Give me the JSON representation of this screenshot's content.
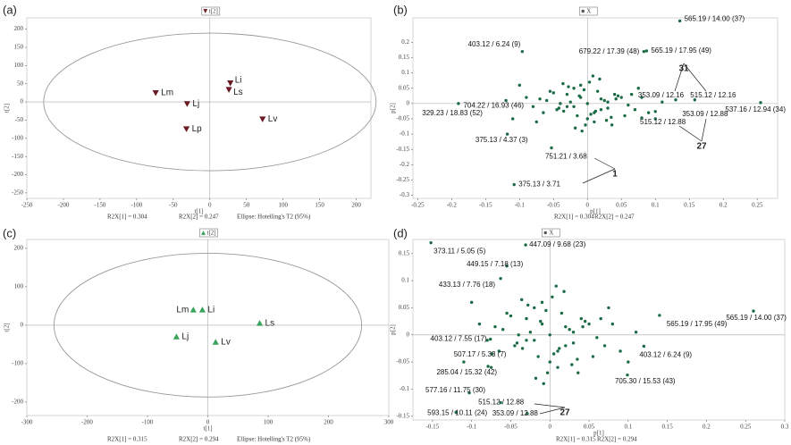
{
  "chart_data": [
    {
      "type": "scatter",
      "panel": "(a)",
      "legend": "t[2]",
      "xlabel": "t[1]",
      "ylabel": "t[2]",
      "marker": "triangle-down",
      "color": "#6b1a24",
      "labels": [
        "Li",
        "Ls",
        "Lm",
        "Lj",
        "Lp",
        "Lv"
      ],
      "x": [
        28,
        26,
        -74,
        -31,
        -32,
        72
      ],
      "y": [
        52,
        34,
        25,
        -5,
        -74,
        -47
      ],
      "xlim": [
        -250,
        220
      ],
      "ylim": [
        -265,
        231
      ],
      "xticks": [
        -250,
        -200,
        -150,
        -100,
        -50,
        0,
        50,
        100,
        150,
        200
      ],
      "yticks": [
        -250,
        -200,
        -150,
        -100,
        -50,
        0,
        50,
        100,
        150,
        200
      ],
      "ellipse": [
        227,
        189
      ],
      "footer": [
        "R2X[1] = 0.304",
        "R2X[2] = 0.247",
        "Ellipse: Hotelling's T2 (95%)"
      ]
    },
    {
      "type": "scatter",
      "panel": "(b)",
      "legend": "X",
      "xlabel": "p[1]",
      "ylabel": "p[2]",
      "marker": "circle",
      "color": "#1b6b45",
      "x": [
        -0.06,
        -0.045,
        -0.03,
        -0.02,
        -0.01,
        0,
        0.01,
        0.02,
        0.03,
        0.045,
        0.06,
        -0.05,
        -0.035,
        -0.025,
        -0.015,
        -0.005,
        0.005,
        0.015,
        0.025,
        0.035,
        0.05,
        -0.04,
        -0.02,
        0,
        0.02,
        0.04,
        -0.03,
        -0.01,
        0.01,
        0.03,
        -0.07,
        0.07,
        -0.08,
        0.08,
        -0.055,
        0.055,
        -0.012,
        0.012,
        -0.028,
        0.028,
        -0.042,
        0.042,
        0.003,
        -0.003,
        -0.065,
        0.065,
        -0.09,
        0.09,
        -0.1,
        0.1,
        -0.075,
        0.075,
        0.018,
        -0.018,
        0.036,
        -0.036,
        0.008,
        -0.008,
        0.11,
        -0.11
      ],
      "y": [
        0.01,
        -0.02,
        0.03,
        -0.01,
        0.02,
        0,
        -0.03,
        0.015,
        -0.015,
        0.025,
        -0.005,
        0.035,
        -0.025,
        0.005,
        -0.04,
        0.045,
        -0.035,
        0.04,
        0.01,
        -0.045,
        0.02,
        0,
        0.05,
        -0.05,
        -0.02,
        0.03,
        -0.01,
        0.06,
        -0.06,
        0.005,
        0.015,
        -0.02,
        -0.01,
        0.02,
        0.04,
        -0.04,
        0.025,
        -0.025,
        0.055,
        -0.055,
        -0.015,
        0.015,
        0.07,
        -0.07,
        -0.03,
        0.03,
        0.02,
        -0.03,
        0.06,
        -0.05,
        -0.06,
        0.05,
        0.08,
        -0.08,
        -0.07,
        0.065,
        0.09,
        -0.09,
        0.005,
        -0.05
      ],
      "labeled": {
        "x": [
          0.136,
          -0.096,
          0.083,
          0.087,
          -0.12,
          -0.19,
          -0.118,
          -0.053,
          -0.108,
          0.13,
          0.158,
          0.255,
          0.08,
          0.1
        ],
        "y": [
          0.27,
          0.17,
          0.17,
          0.172,
          0.01,
          0,
          -0.1,
          -0.145,
          -0.265,
          0.012,
          0.012,
          0.003,
          -0.047,
          -0.026
        ],
        "labels": [
          "565.19 / 14.00 (37)",
          "403.12 / 6.24 (9)",
          "679.22 / 17.39 (48)",
          "565.19 / 17.95 (49)",
          "704.22 / 16.93 (46)",
          "329.23 / 18.83 (52)",
          "375.13 / 4.37 (3)",
          "751.21 / 3.68",
          "375.13 / 3.71",
          "353.09 / 12.16",
          "515.12 / 12.16",
          "537.16 / 12.94 (34)",
          "515.12 / 12.88",
          "353.09 / 12.88"
        ]
      },
      "callouts": [
        "31",
        "27",
        "1"
      ],
      "xlim": [
        -0.257,
        0.28
      ],
      "ylim": [
        -0.31,
        0.28
      ],
      "xticks": [
        -0.25,
        -0.2,
        -0.15,
        -0.1,
        -0.05,
        0,
        0.05,
        0.1,
        0.15,
        0.2,
        0.25
      ],
      "yticks": [
        -0.3,
        -0.25,
        -0.2,
        -0.15,
        -0.1,
        -0.05,
        0,
        0.05,
        0.1,
        0.15,
        0.2
      ],
      "footer": [
        "R2X[1] = 0.304",
        "R2X[2] = 0.247"
      ]
    },
    {
      "type": "scatter",
      "panel": "(c)",
      "legend": "t[2]",
      "xlabel": "t[1]",
      "ylabel": "t[2]",
      "marker": "triangle-up",
      "color": "#3aa35a",
      "labels": [
        "Lm",
        "Li",
        "Ls",
        "Lj",
        "Lv"
      ],
      "x": [
        -24,
        -9,
        86,
        -52,
        13
      ],
      "y": [
        40,
        40,
        5,
        -30,
        -44
      ],
      "xlim": [
        -300,
        300
      ],
      "ylim": [
        -235,
        223
      ],
      "xticks": [
        -300,
        -200,
        -100,
        0,
        100,
        200,
        300
      ],
      "yticks": [
        -200,
        -100,
        0,
        100,
        200
      ],
      "ellipse": [
        255,
        187
      ],
      "footer": [
        "R2X[1] = 0.315",
        "R2X[2] = 0.294",
        "Ellipse: Hotelling's T2 (95%)"
      ]
    },
    {
      "type": "scatter",
      "panel": "(d)",
      "legend": "X",
      "xlabel": "p[1]",
      "ylabel": "p[2]",
      "marker": "circle",
      "color": "#1b6b45",
      "x": [
        -0.06,
        -0.045,
        -0.03,
        -0.02,
        -0.01,
        0,
        0.01,
        0.02,
        0.03,
        0.045,
        0.06,
        -0.05,
        -0.035,
        -0.025,
        -0.015,
        -0.005,
        0.005,
        0.015,
        0.025,
        0.035,
        0.05,
        -0.04,
        -0.02,
        0,
        0.02,
        0.04,
        -0.03,
        -0.01,
        0.01,
        0.03,
        -0.07,
        0.07,
        -0.08,
        0.08,
        -0.055,
        0.055,
        -0.012,
        0.012,
        -0.028,
        0.028,
        -0.042,
        0.042,
        0.003,
        -0.003,
        -0.065,
        0.065,
        -0.09,
        0.09,
        -0.1,
        0.1,
        -0.075,
        0.075,
        0.018,
        -0.018,
        0.036,
        -0.036,
        0.008,
        -0.008,
        0.11,
        -0.11
      ],
      "y": [
        0.01,
        -0.02,
        0.03,
        -0.01,
        0.02,
        0,
        -0.03,
        0.015,
        -0.015,
        0.025,
        -0.005,
        0.035,
        -0.025,
        0.005,
        -0.04,
        0.045,
        -0.035,
        0.04,
        0.01,
        -0.045,
        0.02,
        0,
        0.05,
        -0.05,
        -0.02,
        0.03,
        -0.01,
        0.06,
        -0.06,
        0.005,
        0.015,
        -0.02,
        -0.01,
        0.02,
        0.04,
        -0.04,
        0.025,
        -0.025,
        0.055,
        -0.055,
        -0.015,
        0.015,
        0.07,
        -0.07,
        -0.03,
        0.03,
        0.02,
        -0.03,
        0.06,
        -0.05,
        -0.06,
        0.05,
        0.08,
        -0.08,
        -0.07,
        0.065,
        0.09,
        -0.09,
        0.005,
        -0.05
      ],
      "labeled": {
        "x": [
          -0.152,
          -0.031,
          -0.055,
          -0.063,
          0.14,
          0.26,
          -0.076,
          -0.074,
          -0.079,
          0.12,
          0.099,
          -0.103,
          -0.063,
          -0.12,
          -0.029
        ],
        "y": [
          0.17,
          0.166,
          0.127,
          0.104,
          0.036,
          0.044,
          -0.008,
          -0.035,
          -0.058,
          -0.021,
          -0.074,
          -0.107,
          -0.125,
          -0.143,
          -0.145
        ],
        "labels": [
          "373.11 / 5.05 (5)",
          "447.09 / 9.68 (23)",
          "449.15 / 7.18 (13)",
          "433.13 / 7.76 (18)",
          "565.19 / 17.95 (49)",
          "565.19 / 14.00 (37)",
          "403.12 / 7.55 (17)",
          "507.17 / 5.33 (7)",
          "285.04 / 15.32 (42)",
          "403.12 / 6.24 (9)",
          "705.30 / 15.53 (43)",
          "577.16 / 11.75 (30)",
          "515.12 / 12.88",
          "593.15 / 10.11 (24)",
          "353.09 / 12.88"
        ]
      },
      "callouts": [
        "27"
      ],
      "xlim": [
        -0.175,
        0.3
      ],
      "ylim": [
        -0.157,
        0.176
      ],
      "xticks": [
        -0.15,
        -0.1,
        -0.05,
        0,
        0.05,
        0.1,
        0.15,
        0.2,
        0.25,
        0.3
      ],
      "yticks": [
        -0.15,
        -0.1,
        -0.05,
        0,
        0.05,
        0.1,
        0.15
      ],
      "footer": [
        "R2X[1] = 0.315",
        "R2X[2] = 0.294"
      ]
    }
  ]
}
